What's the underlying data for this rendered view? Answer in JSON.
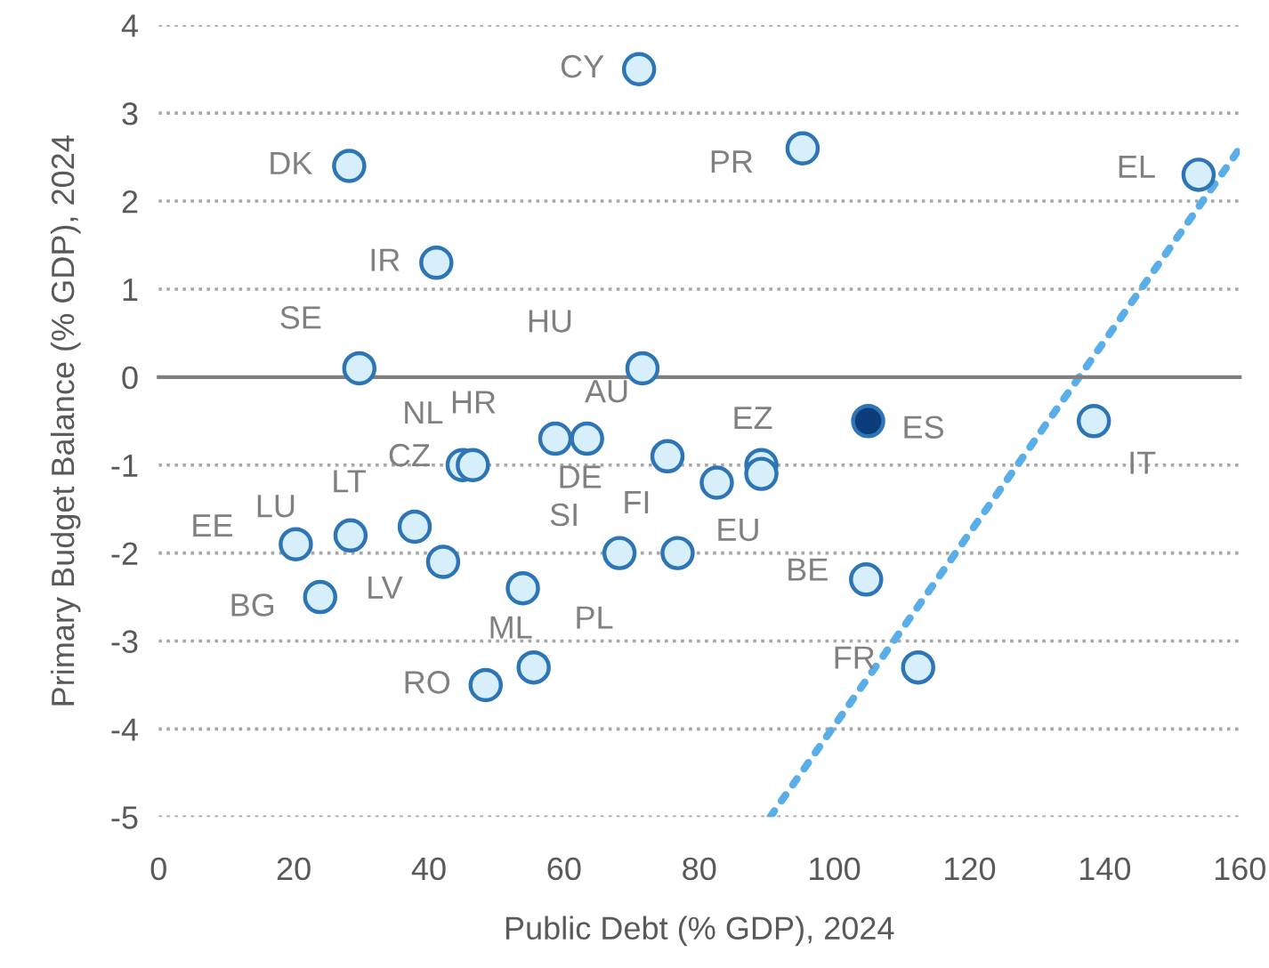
{
  "chart_data": {
    "type": "scatter",
    "xlabel": "Public Debt (% GDP), 2024",
    "ylabel": "Primary Budget Balance (% GDP), 2024",
    "xlim": [
      0,
      160
    ],
    "xticks": [
      0,
      20,
      40,
      60,
      80,
      100,
      120,
      140,
      160
    ],
    "ylim": [
      -5,
      4
    ],
    "yticks": [
      -5,
      -4,
      -3,
      -2,
      -1,
      0,
      1,
      2,
      3,
      4
    ],
    "grid": "y",
    "series": [
      {
        "marker": "circle",
        "x": [
          71.1,
          28.2,
          41.1,
          29.7,
          71.6,
          95.3,
          153.9,
          105,
          138.4,
          45,
          46.5,
          58.7,
          63.4,
          75.3,
          89.2,
          89.2,
          82.6,
          68.2,
          76.8,
          20.3,
          28.4,
          37.9,
          42.1,
          23.9,
          53.9,
          55.5,
          48.4,
          104.7,
          112.4
        ],
        "values": [
          3.5,
          2.4,
          1.3,
          0.1,
          0.1,
          2.6,
          2.3,
          -0.5,
          -0.5,
          -1.0,
          -1.0,
          -0.7,
          -0.7,
          -0.9,
          -1.0,
          -1.1,
          -1.2,
          -2.0,
          -2.0,
          -1.9,
          -1.8,
          -1.7,
          -2.1,
          -2.5,
          -2.4,
          -3.3,
          -3.5,
          -2.3,
          -3.3
        ],
        "colors": [
          "#d6effb",
          "#d6effb",
          "#d6effb",
          "#d6effb",
          "#d6effb",
          "#d6effb",
          "#d6effb",
          "#0b3d7a",
          "#d6effb",
          "#d6effb",
          "#d6effb",
          "#d6effb",
          "#d6effb",
          "#d6effb",
          "#d6effb",
          "#d6effb",
          "#d6effb",
          "#d6effb",
          "#d6effb",
          "#d6effb",
          "#d6effb",
          "#d6effb",
          "#d6effb",
          "#d6effb",
          "#d6effb",
          "#d6effb",
          "#d6effb",
          "#d6effb",
          "#d6effb"
        ]
      },
      {
        "type": "line",
        "x": [
          90.5,
          160
        ],
        "values": [
          -5,
          2.6
        ],
        "color": "#5aaee8",
        "line_style": "dotted",
        "marker": "none"
      }
    ],
    "annotations": [
      {
        "text": "CY",
        "x": 71.1,
        "y": 3.5
      },
      {
        "text": "DK",
        "x": 28.2,
        "y": 2.4
      },
      {
        "text": "IR",
        "x": 41.1,
        "y": 1.3
      },
      {
        "text": "SE",
        "x": 29.7,
        "y": 0.1
      },
      {
        "text": "HU",
        "x": 71.6,
        "y": 0.1
      },
      {
        "text": "PR",
        "x": 95.3,
        "y": 2.6
      },
      {
        "text": "EL",
        "x": 153.9,
        "y": 2.3
      },
      {
        "text": "ES",
        "x": 105,
        "y": -0.5
      },
      {
        "text": "IT",
        "x": 138.4,
        "y": -0.5
      },
      {
        "text": "CZ",
        "x": 45,
        "y": -1.0
      },
      {
        "text": "NL",
        "x": 46.5,
        "y": -1.0
      },
      {
        "text": "HR",
        "x": 58.7,
        "y": -0.7
      },
      {
        "text": "DE",
        "x": 63.4,
        "y": -0.7
      },
      {
        "text": "AU",
        "x": 75.3,
        "y": -0.9
      },
      {
        "text": "EZ",
        "x": 89.2,
        "y": -1.0
      },
      {
        "text": "EU",
        "x": 82.6,
        "y": -1.2
      },
      {
        "text": "SI",
        "x": 68.2,
        "y": -2.0
      },
      {
        "text": "FI",
        "x": 76.8,
        "y": -2.0
      },
      {
        "text": "EE",
        "x": 20.3,
        "y": -1.9
      },
      {
        "text": "LU",
        "x": 28.4,
        "y": -1.8
      },
      {
        "text": "LT",
        "x": 37.9,
        "y": -1.7
      },
      {
        "text": "LV",
        "x": 42.1,
        "y": -2.1
      },
      {
        "text": "BG",
        "x": 23.9,
        "y": -2.5
      },
      {
        "text": "PL",
        "x": 53.9,
        "y": -2.4
      },
      {
        "text": "ML",
        "x": 55.5,
        "y": -3.3
      },
      {
        "text": "RO",
        "x": 48.4,
        "y": -3.5
      },
      {
        "text": "BE",
        "x": 104.7,
        "y": -2.3
      },
      {
        "text": "FR",
        "x": 112.4,
        "y": -3.3
      }
    ]
  }
}
